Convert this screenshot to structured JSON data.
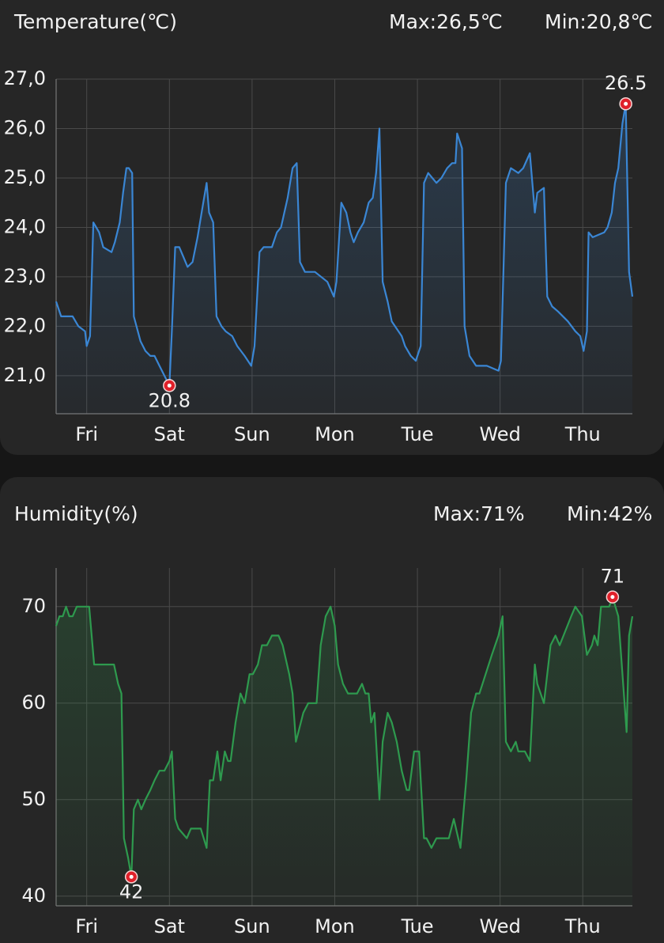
{
  "chart_data": [
    {
      "type": "line",
      "title": "Temperature(℃)",
      "annotations": [
        "Max:26,5℃",
        "Min:20,8℃"
      ],
      "color": "#3a86d4",
      "x": [
        -0.37,
        -0.31,
        -0.24,
        -0.17,
        -0.1,
        -0.02,
        0,
        0.04,
        0.08,
        0.15,
        0.2,
        0.3,
        0.34,
        0.4,
        0.44,
        0.48,
        0.51,
        0.55,
        0.57,
        0.65,
        0.71,
        0.77,
        0.82,
        0.88,
        0.94,
        1.0,
        1.03,
        1.07,
        1.12,
        1.17,
        1.22,
        1.28,
        1.34,
        1.4,
        1.45,
        1.48,
        1.53,
        1.57,
        1.63,
        1.68,
        1.76,
        1.82,
        1.91,
        1.99,
        2.03,
        2.09,
        2.14,
        2.24,
        2.3,
        2.35,
        2.43,
        2.49,
        2.54,
        2.58,
        2.64,
        2.76,
        2.91,
        2.99,
        3.02,
        3.08,
        3.14,
        3.19,
        3.23,
        3.28,
        3.35,
        3.41,
        3.46,
        3.5,
        3.54,
        3.58,
        3.64,
        3.69,
        3.81,
        3.85,
        3.92,
        3.98,
        4.04,
        4.08,
        4.13,
        4.23,
        4.29,
        4.36,
        4.42,
        4.46,
        4.48,
        4.54,
        4.57,
        4.63,
        4.71,
        4.84,
        4.98,
        5.01,
        5.07,
        5.13,
        5.22,
        5.28,
        5.36,
        5.42,
        5.45,
        5.53,
        5.57,
        5.63,
        5.7,
        5.82,
        5.91,
        5.97,
        6.01,
        6.05,
        6.07,
        6.12,
        6.26,
        6.3,
        6.35,
        6.39,
        6.43,
        6.48,
        6.52,
        6.56,
        6.6
      ],
      "values": [
        22.5,
        22.2,
        22.2,
        22.2,
        22.0,
        21.9,
        21.6,
        21.8,
        24.1,
        23.9,
        23.6,
        23.5,
        23.7,
        24.1,
        24.7,
        25.2,
        25.2,
        25.1,
        22.2,
        21.7,
        21.5,
        21.4,
        21.4,
        21.2,
        21.0,
        20.8,
        21.9,
        23.6,
        23.6,
        23.4,
        23.2,
        23.3,
        23.8,
        24.4,
        24.9,
        24.3,
        24.1,
        22.2,
        22.0,
        21.9,
        21.8,
        21.6,
        21.4,
        21.2,
        21.6,
        23.5,
        23.6,
        23.6,
        23.9,
        24.0,
        24.6,
        25.2,
        25.3,
        23.3,
        23.1,
        23.1,
        22.9,
        22.6,
        22.9,
        24.5,
        24.3,
        23.9,
        23.7,
        23.9,
        24.1,
        24.5,
        24.6,
        25.1,
        26.0,
        22.9,
        22.5,
        22.1,
        21.8,
        21.6,
        21.4,
        21.3,
        21.6,
        24.9,
        25.1,
        24.9,
        25.0,
        25.2,
        25.3,
        25.3,
        25.9,
        25.6,
        22.0,
        21.4,
        21.2,
        21.2,
        21.1,
        21.3,
        24.9,
        25.2,
        25.1,
        25.2,
        25.5,
        24.3,
        24.7,
        24.8,
        22.6,
        22.4,
        22.3,
        22.1,
        21.9,
        21.8,
        21.5,
        21.9,
        23.9,
        23.8,
        23.9,
        24.0,
        24.3,
        24.9,
        25.2,
        26.1,
        26.5,
        23.1,
        22.6
      ],
      "markers": [
        {
          "x": 1.0,
          "y": 20.8
        },
        {
          "x": 6.52,
          "y": 26.5
        }
      ],
      "xlim": [
        -0.37,
        6.6
      ],
      "xticks": [
        {
          "value": 0,
          "label": "Fri"
        },
        {
          "value": 1,
          "label": "Sat"
        },
        {
          "value": 2,
          "label": "Sun"
        },
        {
          "value": 3,
          "label": "Mon"
        },
        {
          "value": 4,
          "label": "Tue"
        },
        {
          "value": 5,
          "label": "Wed"
        },
        {
          "value": 6,
          "label": "Thu"
        }
      ],
      "ylim": [
        20.23,
        27.0
      ],
      "yticks": [
        {
          "value": 21,
          "label": "21,0"
        },
        {
          "value": 22,
          "label": "22,0"
        },
        {
          "value": 23,
          "label": "23,0"
        },
        {
          "value": 24,
          "label": "24,0"
        },
        {
          "value": 25,
          "label": "25,0"
        },
        {
          "value": 26,
          "label": "26,0"
        },
        {
          "value": 27,
          "label": "27,0"
        }
      ],
      "grid": true
    },
    {
      "type": "line",
      "title": "Humidity(%)",
      "annotations": [
        "Max:71%",
        "Min:42%"
      ],
      "color": "#2e9a4e",
      "x": [
        -0.37,
        -0.33,
        -0.29,
        -0.25,
        -0.21,
        -0.17,
        -0.12,
        0.03,
        0.09,
        0.33,
        0.38,
        0.42,
        0.45,
        0.5,
        0.54,
        0.57,
        0.62,
        0.66,
        0.71,
        0.77,
        0.82,
        0.88,
        0.94,
        1.0,
        1.03,
        1.07,
        1.11,
        1.21,
        1.26,
        1.38,
        1.45,
        1.49,
        1.53,
        1.58,
        1.62,
        1.67,
        1.71,
        1.74,
        1.8,
        1.86,
        1.91,
        1.97,
        2.01,
        2.07,
        2.12,
        2.18,
        2.24,
        2.32,
        2.37,
        2.45,
        2.49,
        2.53,
        2.56,
        2.62,
        2.68,
        2.78,
        2.83,
        2.89,
        2.95,
        3.0,
        3.04,
        3.1,
        3.16,
        3.27,
        3.33,
        3.37,
        3.41,
        3.44,
        3.48,
        3.54,
        3.58,
        3.64,
        3.69,
        3.75,
        3.81,
        3.87,
        3.9,
        3.96,
        4.02,
        4.08,
        4.11,
        4.17,
        4.23,
        4.29,
        4.38,
        4.44,
        4.52,
        4.59,
        4.65,
        4.71,
        4.75,
        4.9,
        4.98,
        5.03,
        5.07,
        5.13,
        5.19,
        5.22,
        5.3,
        5.36,
        5.42,
        5.45,
        5.53,
        5.61,
        5.67,
        5.72,
        5.86,
        5.91,
        5.99,
        6.05,
        6.11,
        6.14,
        6.18,
        6.22,
        6.32,
        6.36,
        6.43,
        6.53,
        6.56,
        6.6
      ],
      "values": [
        68,
        69,
        69,
        70,
        69,
        69,
        70,
        70,
        64,
        64,
        62,
        61,
        46,
        44,
        42,
        49,
        50,
        49,
        50,
        51,
        52,
        53,
        53,
        54,
        55,
        48,
        47,
        46,
        47,
        47,
        45,
        52,
        52,
        55,
        52,
        55,
        54,
        54,
        58,
        61,
        60,
        63,
        63,
        64,
        66,
        66,
        67,
        67,
        66,
        63,
        61,
        56,
        57,
        59,
        60,
        60,
        66,
        69,
        70,
        68,
        64,
        62,
        61,
        61,
        62,
        61,
        61,
        58,
        59,
        50,
        56,
        59,
        58,
        56,
        53,
        51,
        51,
        55,
        55,
        46,
        46,
        45,
        46,
        46,
        46,
        48,
        45,
        52,
        59,
        61,
        61,
        65,
        67,
        69,
        56,
        55,
        56,
        55,
        55,
        54,
        64,
        62,
        60,
        66,
        67,
        66,
        69,
        70,
        69,
        65,
        66,
        67,
        66,
        70,
        70,
        71,
        69,
        57,
        67,
        69
      ],
      "markers": [
        {
          "x": 0.54,
          "y": 42
        },
        {
          "x": 6.36,
          "y": 71
        }
      ],
      "xlim": [
        -0.37,
        6.6
      ],
      "xticks": [
        {
          "value": 0,
          "label": "Fri"
        },
        {
          "value": 1,
          "label": "Sat"
        },
        {
          "value": 2,
          "label": "Sun"
        },
        {
          "value": 3,
          "label": "Mon"
        },
        {
          "value": 4,
          "label": "Tue"
        },
        {
          "value": 5,
          "label": "Wed"
        },
        {
          "value": 6,
          "label": "Thu"
        }
      ],
      "ylim": [
        39,
        74
      ],
      "yticks": [
        40,
        50,
        60,
        70
      ],
      "grid": true
    }
  ]
}
